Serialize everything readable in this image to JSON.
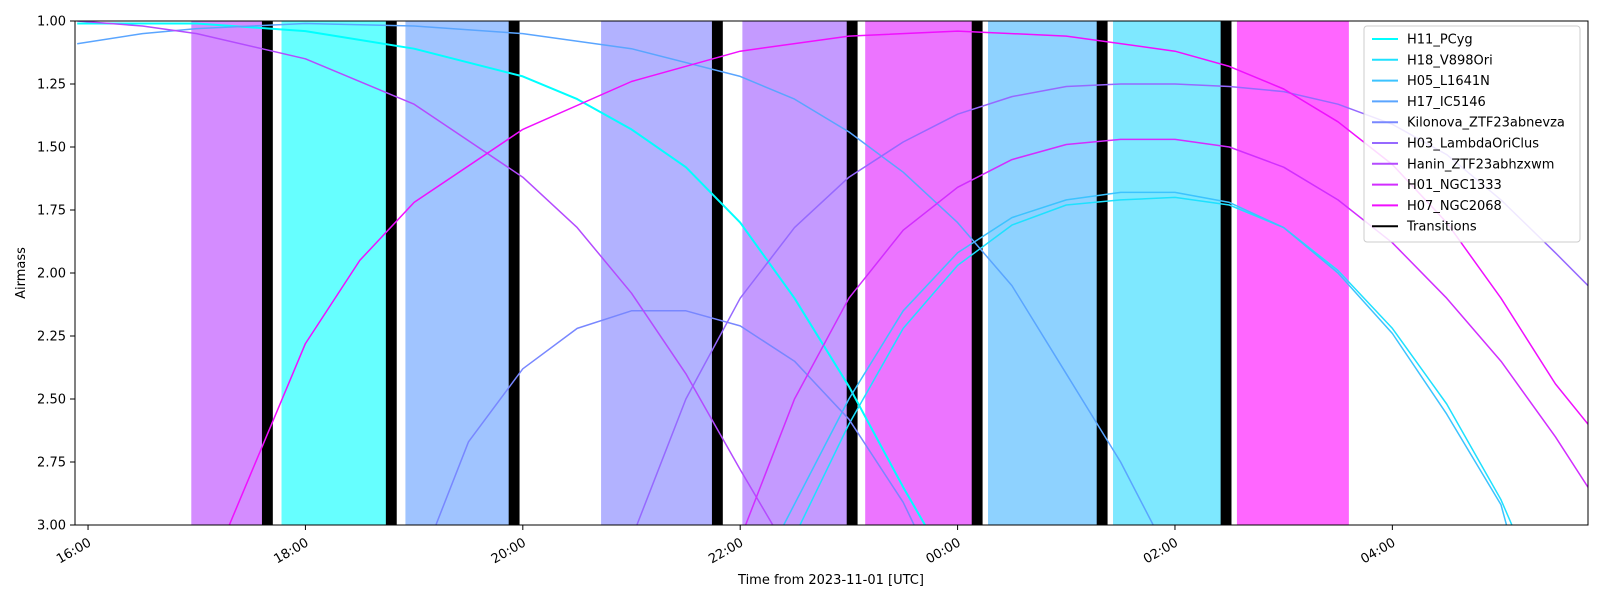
{
  "chart_data": {
    "type": "line",
    "title": "",
    "xlabel": "Time from 2023-11-01 [UTC]",
    "ylabel": "Airmass",
    "x_unit": "hours (UTC) from 2023-11-01 00:00; values above 24 fall on 2023-11-02",
    "xlim": [
      15.88,
      29.8
    ],
    "ylim": [
      3.0,
      1.0
    ],
    "y_inverted": true,
    "grid": false,
    "legend_position": "top-right",
    "x_ticks": [
      {
        "x": 16,
        "label": "16:00"
      },
      {
        "x": 18,
        "label": "18:00"
      },
      {
        "x": 20,
        "label": "20:00"
      },
      {
        "x": 22,
        "label": "22:00"
      },
      {
        "x": 24,
        "label": "00:00"
      },
      {
        "x": 26,
        "label": "02:00"
      },
      {
        "x": 28,
        "label": "04:00"
      }
    ],
    "y_ticks": [
      {
        "y": 1.0,
        "label": "1.00"
      },
      {
        "y": 1.25,
        "label": "1.25"
      },
      {
        "y": 1.5,
        "label": "1.50"
      },
      {
        "y": 1.75,
        "label": "1.75"
      },
      {
        "y": 2.0,
        "label": "2.00"
      },
      {
        "y": 2.25,
        "label": "2.25"
      },
      {
        "y": 2.5,
        "label": "2.50"
      },
      {
        "y": 2.75,
        "label": "2.75"
      },
      {
        "y": 3.0,
        "label": "3.00"
      }
    ],
    "series": [
      {
        "name": "H11_PCyg",
        "color": "#00ffff",
        "width": 2,
        "points": [
          [
            15.9,
            1.01
          ],
          [
            17,
            1.01
          ],
          [
            18,
            1.04
          ],
          [
            19,
            1.11
          ],
          [
            20,
            1.22
          ],
          [
            20.5,
            1.31
          ],
          [
            21,
            1.43
          ],
          [
            21.5,
            1.58
          ],
          [
            22,
            1.8
          ],
          [
            22.5,
            2.1
          ],
          [
            23,
            2.45
          ],
          [
            23.5,
            2.85
          ],
          [
            23.7,
            3.0
          ]
        ]
      },
      {
        "name": "H18_V898Ori",
        "color": "#1ee1ff",
        "width": 1.5,
        "points": [
          [
            22.55,
            3.0
          ],
          [
            23,
            2.6
          ],
          [
            23.5,
            2.22
          ],
          [
            24,
            1.97
          ],
          [
            24.5,
            1.81
          ],
          [
            25,
            1.73
          ],
          [
            25.5,
            1.71
          ],
          [
            26,
            1.7
          ],
          [
            26.5,
            1.73
          ],
          [
            27,
            1.82
          ],
          [
            27.5,
            1.99
          ],
          [
            28,
            2.22
          ],
          [
            28.5,
            2.52
          ],
          [
            29,
            2.9
          ],
          [
            29.1,
            3.0
          ]
        ]
      },
      {
        "name": "H05_L1641N",
        "color": "#3cc3ff",
        "width": 1.5,
        "points": [
          [
            22.4,
            3.0
          ],
          [
            23,
            2.5
          ],
          [
            23.5,
            2.15
          ],
          [
            24,
            1.92
          ],
          [
            24.5,
            1.78
          ],
          [
            25,
            1.71
          ],
          [
            25.5,
            1.68
          ],
          [
            26,
            1.68
          ],
          [
            26.5,
            1.72
          ],
          [
            27,
            1.82
          ],
          [
            27.5,
            2.0
          ],
          [
            28,
            2.24
          ],
          [
            28.5,
            2.56
          ],
          [
            29,
            2.92
          ],
          [
            29.05,
            3.0
          ]
        ]
      },
      {
        "name": "H17_IC5146",
        "color": "#5aa5ff",
        "width": 1.5,
        "points": [
          [
            15.9,
            1.09
          ],
          [
            16.5,
            1.05
          ],
          [
            17,
            1.03
          ],
          [
            18,
            1.01
          ],
          [
            19,
            1.02
          ],
          [
            20,
            1.05
          ],
          [
            21,
            1.11
          ],
          [
            22,
            1.22
          ],
          [
            22.5,
            1.31
          ],
          [
            23,
            1.44
          ],
          [
            23.5,
            1.6
          ],
          [
            24,
            1.8
          ],
          [
            24.5,
            2.05
          ],
          [
            25,
            2.4
          ],
          [
            25.5,
            2.75
          ],
          [
            25.8,
            3.0
          ]
        ]
      },
      {
        "name": "Kilonova_ZTF23abnevza",
        "color": "#7887ff",
        "width": 1.5,
        "points": [
          [
            19.2,
            3.0
          ],
          [
            19.5,
            2.67
          ],
          [
            20,
            2.38
          ],
          [
            20.5,
            2.22
          ],
          [
            21,
            2.15
          ],
          [
            21.5,
            2.15
          ],
          [
            22,
            2.21
          ],
          [
            22.5,
            2.35
          ],
          [
            23,
            2.58
          ],
          [
            23.5,
            2.91
          ],
          [
            23.6,
            3.0
          ]
        ]
      },
      {
        "name": "H03_LambdaOriClus",
        "color": "#9669ff",
        "width": 1.5,
        "points": [
          [
            21.05,
            3.0
          ],
          [
            21.5,
            2.5
          ],
          [
            22,
            2.1
          ],
          [
            22.5,
            1.82
          ],
          [
            23,
            1.62
          ],
          [
            23.5,
            1.48
          ],
          [
            24,
            1.37
          ],
          [
            24.5,
            1.3
          ],
          [
            25,
            1.26
          ],
          [
            25.5,
            1.25
          ],
          [
            26,
            1.25
          ],
          [
            26.5,
            1.26
          ],
          [
            27,
            1.28
          ],
          [
            27.5,
            1.33
          ],
          [
            28,
            1.41
          ],
          [
            28.5,
            1.53
          ],
          [
            29,
            1.71
          ],
          [
            29.5,
            1.92
          ],
          [
            29.8,
            2.05
          ]
        ]
      },
      {
        "name": "Hanin_ZTF23abhzxwm",
        "color": "#b44bff",
        "width": 1.5,
        "points": [
          [
            15.9,
            1.0
          ],
          [
            16.5,
            1.02
          ],
          [
            17,
            1.05
          ],
          [
            18,
            1.15
          ],
          [
            19,
            1.33
          ],
          [
            20,
            1.62
          ],
          [
            20.5,
            1.82
          ],
          [
            21,
            2.08
          ],
          [
            21.5,
            2.4
          ],
          [
            22,
            2.78
          ],
          [
            22.3,
            3.0
          ]
        ]
      },
      {
        "name": "H01_NGC1333",
        "color": "#d22dff",
        "width": 1.5,
        "points": [
          [
            22.05,
            3.0
          ],
          [
            22.5,
            2.5
          ],
          [
            23,
            2.1
          ],
          [
            23.5,
            1.83
          ],
          [
            24,
            1.66
          ],
          [
            24.5,
            1.55
          ],
          [
            25,
            1.49
          ],
          [
            25.5,
            1.47
          ],
          [
            26,
            1.47
          ],
          [
            26.5,
            1.5
          ],
          [
            27,
            1.58
          ],
          [
            27.5,
            1.71
          ],
          [
            28,
            1.88
          ],
          [
            28.5,
            2.1
          ],
          [
            29,
            2.35
          ],
          [
            29.5,
            2.65
          ],
          [
            29.8,
            2.85
          ]
        ]
      },
      {
        "name": "H07_NGC2068",
        "color": "#f00fff",
        "width": 1.5,
        "points": [
          [
            17.3,
            3.0
          ],
          [
            18,
            2.28
          ],
          [
            18.5,
            1.95
          ],
          [
            19,
            1.72
          ],
          [
            20,
            1.43
          ],
          [
            21,
            1.24
          ],
          [
            22,
            1.12
          ],
          [
            23,
            1.06
          ],
          [
            24,
            1.04
          ],
          [
            25,
            1.06
          ],
          [
            26,
            1.12
          ],
          [
            26.5,
            1.18
          ],
          [
            27,
            1.27
          ],
          [
            27.5,
            1.4
          ],
          [
            28,
            1.57
          ],
          [
            28.5,
            1.8
          ],
          [
            29,
            2.1
          ],
          [
            29.5,
            2.44
          ],
          [
            29.8,
            2.6
          ]
        ]
      }
    ],
    "transitions_series": {
      "name": "Transitions",
      "color": "#000000"
    },
    "shaded_spans": [
      {
        "x0": 16.95,
        "x1": 17.68,
        "color": "#d48cff"
      },
      {
        "x0": 17.78,
        "x1": 18.82,
        "color": "#66ffff"
      },
      {
        "x0": 18.92,
        "x1": 19.95,
        "color": "#a0c4ff"
      },
      {
        "x0": 20.72,
        "x1": 21.78,
        "color": "#b2b2ff"
      },
      {
        "x0": 22.02,
        "x1": 23.05,
        "color": "#c49aff"
      },
      {
        "x0": 23.15,
        "x1": 24.18,
        "color": "#ec74ff"
      },
      {
        "x0": 24.28,
        "x1": 25.33,
        "color": "#8ed2ff"
      },
      {
        "x0": 25.43,
        "x1": 26.47,
        "color": "#7ee8ff"
      },
      {
        "x0": 26.57,
        "x1": 27.6,
        "color": "#ff66ff"
      }
    ],
    "transitions": [
      {
        "x0": 17.6,
        "x1": 17.7
      },
      {
        "x0": 18.74,
        "x1": 18.84
      },
      {
        "x0": 19.87,
        "x1": 19.97
      },
      {
        "x0": 21.74,
        "x1": 21.84
      },
      {
        "x0": 22.98,
        "x1": 23.08
      },
      {
        "x0": 24.13,
        "x1": 24.23
      },
      {
        "x0": 25.28,
        "x1": 25.38
      },
      {
        "x0": 26.42,
        "x1": 26.52
      }
    ]
  }
}
